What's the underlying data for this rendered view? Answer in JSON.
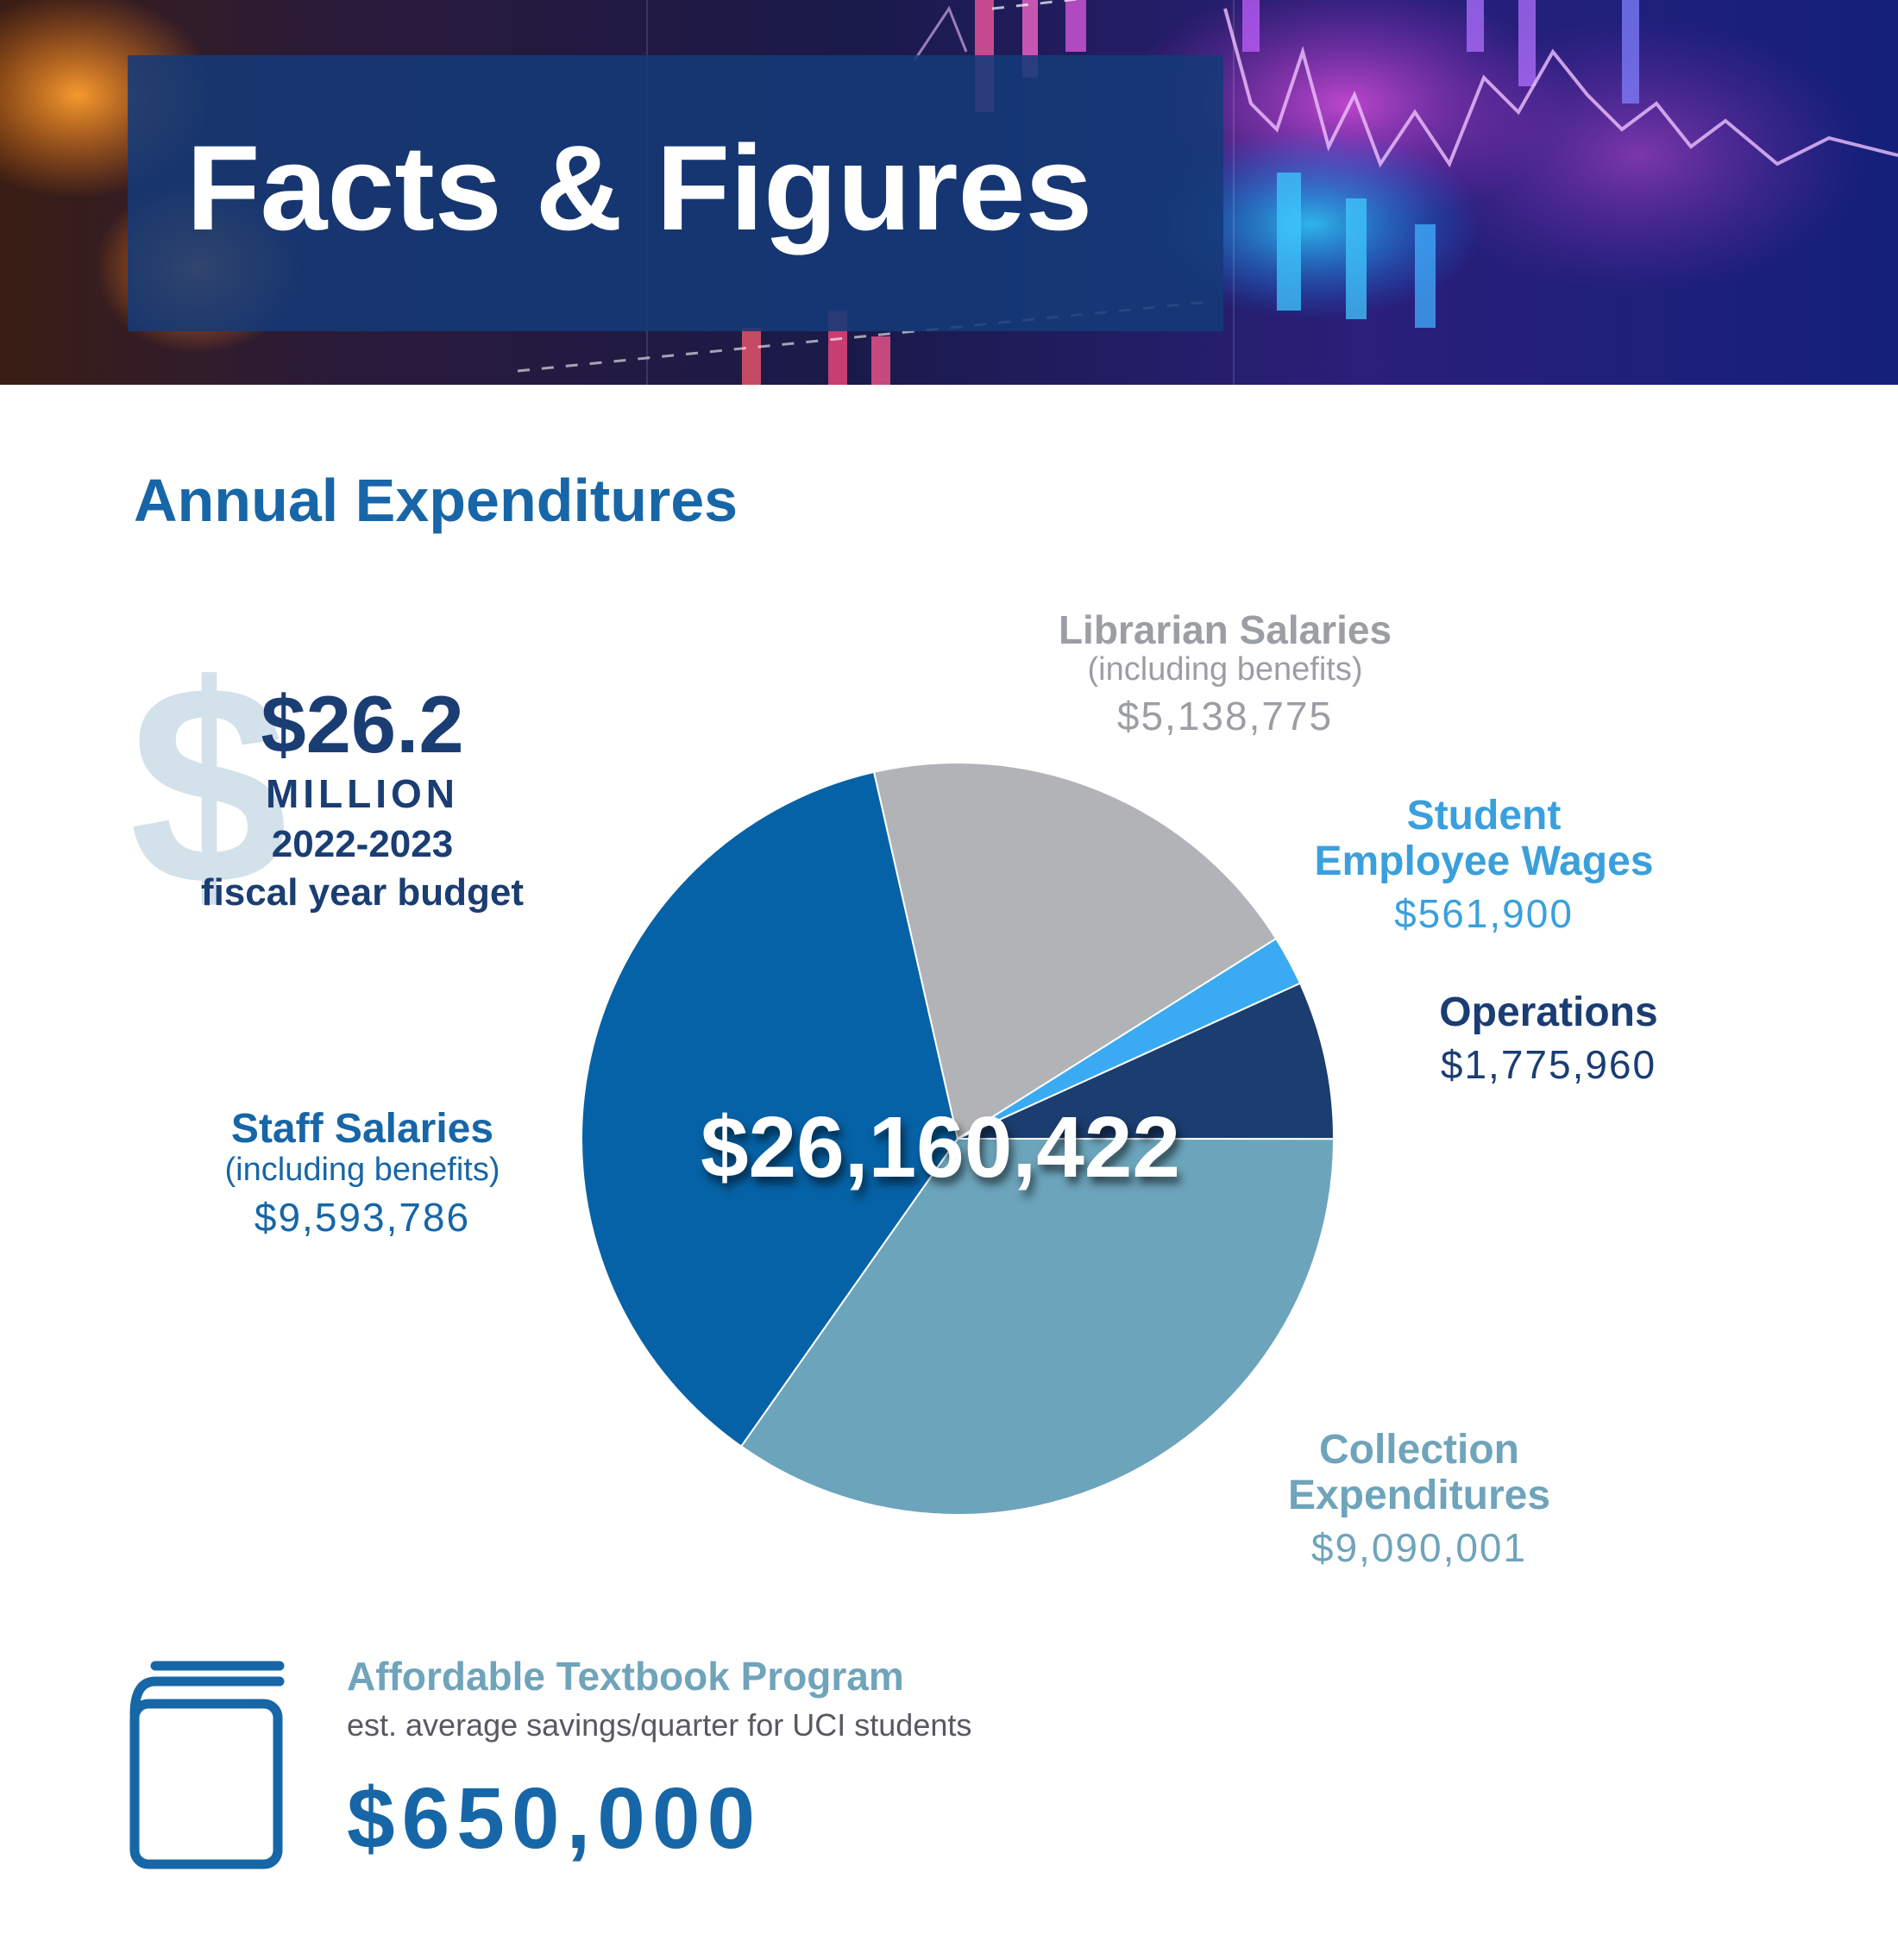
{
  "header": {
    "title": "Facts & Figures"
  },
  "section": {
    "title": "Annual Expenditures"
  },
  "budget": {
    "icon": "dollar-sign-icon",
    "amount": "$26.2",
    "unit": "MILLION",
    "years": "2022-2023",
    "caption": "fiscal year budget"
  },
  "chart_data": {
    "type": "pie",
    "total_label": "$26,160,422",
    "slices": [
      {
        "name": "Librarian Salaries",
        "sub": "(including benefits)",
        "value": 5138775,
        "value_label": "$5,138,775",
        "color": "#b1b3b7"
      },
      {
        "name": "Student Employee Wages",
        "sub": "",
        "value": 561900,
        "value_label": "$561,900",
        "color": "#3aabf2"
      },
      {
        "name": "Operations",
        "sub": "",
        "value": 1775960,
        "value_label": "$1,775,960",
        "color": "#1b3d6f"
      },
      {
        "name": "Collection Expenditures",
        "sub": "",
        "value": 9090001,
        "value_label": "$9,090,001",
        "color": "#6ca4bb"
      },
      {
        "name": "Staff Salaries",
        "sub": "(including benefits)",
        "value": 9593786,
        "value_label": "$9,593,786",
        "color": "#0662a6"
      }
    ],
    "label_texts": {
      "student_line1": "Student",
      "student_line2": "Employee Wages",
      "collection_line1": "Collection",
      "collection_line2": "Expenditures"
    }
  },
  "textbook": {
    "icon": "book-icon",
    "title": "Affordable Textbook Program",
    "subtitle": "est. average savings/quarter for UCI students",
    "amount": "$650,000"
  }
}
